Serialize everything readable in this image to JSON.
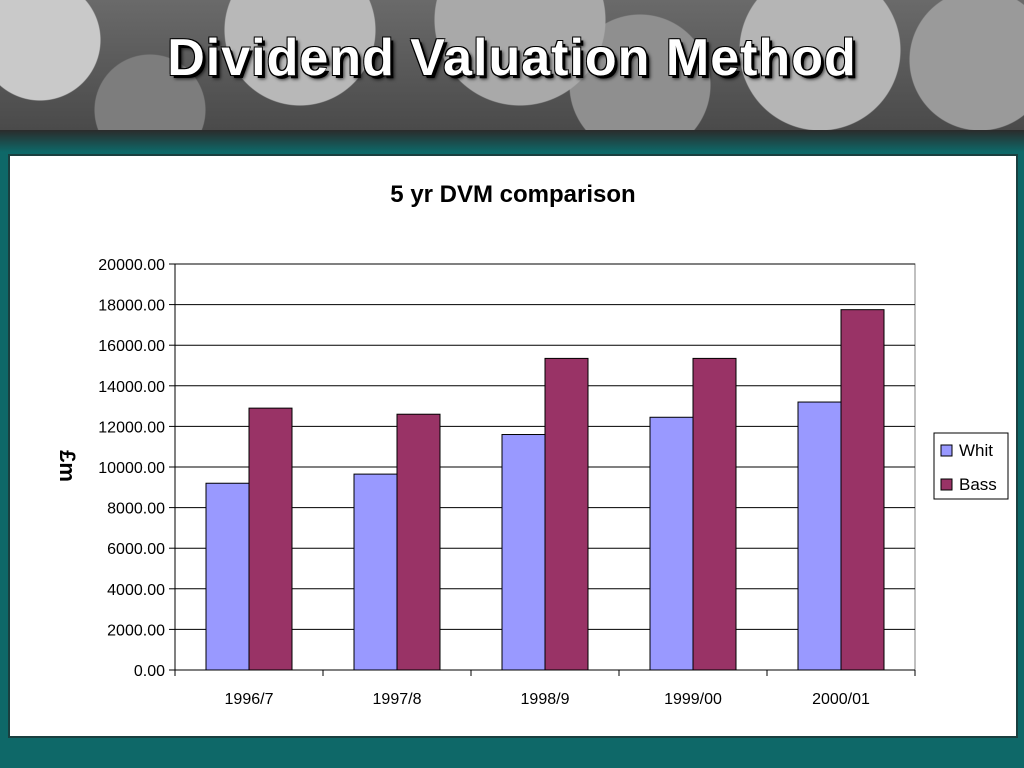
{
  "slide": {
    "title": "Dividend Valuation Method"
  },
  "colors": {
    "background": "#0e6868",
    "whit": "#9999ff",
    "bass": "#993366"
  },
  "chart_data": {
    "type": "bar",
    "title": "5 yr DVM comparison",
    "xlabel": "",
    "ylabel": "£m",
    "categories": [
      "1996/7",
      "1997/8",
      "1998/9",
      "1999/00",
      "2000/01"
    ],
    "series": [
      {
        "name": "Whit",
        "color": "#9999ff",
        "values": [
          9200,
          9650,
          11600,
          12450,
          13200
        ]
      },
      {
        "name": "Bass",
        "color": "#993366",
        "values": [
          12900,
          12600,
          15350,
          15350,
          17750
        ]
      }
    ],
    "ylim": [
      0,
      20000
    ],
    "yticks": [
      "0.00",
      "2000.00",
      "4000.00",
      "6000.00",
      "8000.00",
      "10000.00",
      "12000.00",
      "14000.00",
      "16000.00",
      "18000.00",
      "20000.00"
    ],
    "grid": true,
    "legend_position": "right"
  }
}
